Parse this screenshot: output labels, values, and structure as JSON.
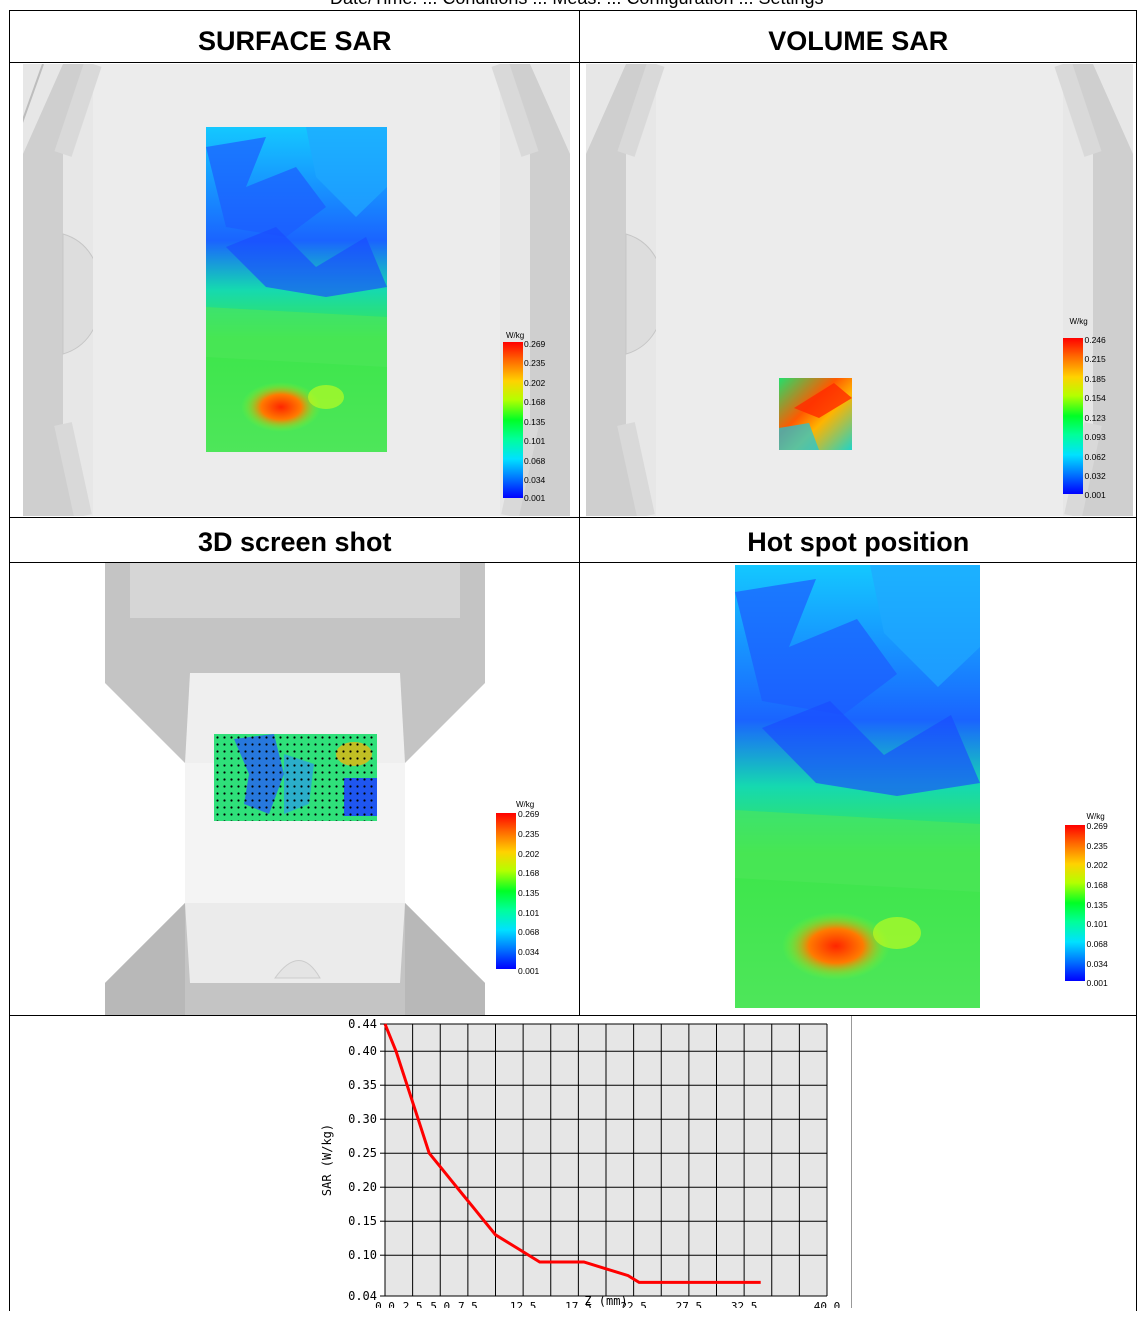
{
  "top_fragment": "Date/Time: ... Conditions ... Meas. ... Configuration ... Settings",
  "panels": {
    "surface": {
      "title": "SURFACE SAR"
    },
    "volume": {
      "title": "VOLUME SAR"
    },
    "screenshot": {
      "title": "3D screen shot"
    },
    "hotspot": {
      "title": "Hot spot position"
    }
  },
  "colorbars": {
    "surface": {
      "unit": "W/kg",
      "ticks": [
        "0.269",
        "0.235",
        "0.202",
        "0.168",
        "0.135",
        "0.101",
        "0.068",
        "0.034",
        "0.001"
      ]
    },
    "volume": {
      "unit": "W/kg",
      "ticks": [
        "0.246",
        "0.215",
        "0.185",
        "0.154",
        "0.123",
        "0.093",
        "0.062",
        "0.032",
        "0.001"
      ]
    },
    "screenshot": {
      "unit": "W/kg",
      "ticks": [
        "0.269",
        "0.235",
        "0.202",
        "0.168",
        "0.135",
        "0.101",
        "0.068",
        "0.034",
        "0.001"
      ]
    },
    "hotspot": {
      "unit": "W/kg",
      "ticks": [
        "0.269",
        "0.235",
        "0.202",
        "0.168",
        "0.135",
        "0.101",
        "0.068",
        "0.034",
        "0.001"
      ]
    }
  },
  "colors": {
    "curve": "#ff0000",
    "plot_bg": "#e6e6e6",
    "grid": "#000000"
  },
  "chart_data": {
    "type": "line",
    "xlabel": "Z (mm)",
    "ylabel": "SAR (W/kg)",
    "xlim": [
      0,
      40
    ],
    "ylim": [
      0.04,
      0.44
    ],
    "x_ticks": [
      "0.0",
      "2.5",
      "5.0",
      "7.5",
      "12.5",
      "17.5",
      "22.5",
      "27.5",
      "32.5",
      "40.0"
    ],
    "x_tick_values": [
      0,
      2.5,
      5,
      7.5,
      12.5,
      17.5,
      22.5,
      27.5,
      32.5,
      40
    ],
    "y_ticks": [
      "0.44",
      "0.40",
      "0.35",
      "0.30",
      "0.25",
      "0.20",
      "0.15",
      "0.10",
      "0.04"
    ],
    "y_tick_values": [
      0.44,
      0.4,
      0.35,
      0.3,
      0.25,
      0.2,
      0.15,
      0.1,
      0.04
    ],
    "grid": true,
    "series": [
      {
        "x": [
          0,
          1,
          2,
          3,
          4,
          5,
          6,
          7,
          8,
          9,
          10,
          12,
          14,
          17,
          18,
          20,
          22,
          23,
          26,
          28,
          30,
          32,
          34
        ],
        "y": [
          0.44,
          0.4,
          0.35,
          0.3,
          0.25,
          0.23,
          0.21,
          0.19,
          0.17,
          0.15,
          0.13,
          0.11,
          0.09,
          0.09,
          0.09,
          0.08,
          0.07,
          0.06,
          0.06,
          0.06,
          0.06,
          0.06,
          0.06
        ]
      }
    ]
  }
}
